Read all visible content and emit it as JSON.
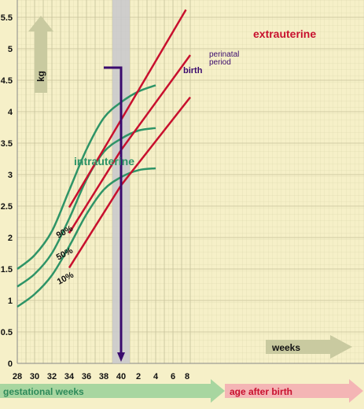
{
  "chart_data": {
    "type": "line",
    "ylabel": "kg",
    "yticks": [
      "0",
      "0.5",
      "1",
      "1.5",
      "2",
      "2.5",
      "3",
      "3.5",
      "4",
      "4.5",
      "5",
      "5.5"
    ],
    "ylim": [
      0,
      5.75
    ],
    "xticks_gestational": [
      "28",
      "30",
      "32",
      "34",
      "36",
      "38",
      "40"
    ],
    "xticks_after_birth": [
      "2",
      "4",
      "6",
      "8"
    ],
    "gestational_axis_label": "gestational weeks",
    "after_birth_axis_label": "age after birth",
    "weeks_label": "weeks",
    "intrauterine_label": "intrauterine",
    "extrauterine_label": "extrauterine",
    "birth_label": "birth",
    "perinatal_label_line1": "perinatal",
    "perinatal_label_line2": "period",
    "perinatal_band": [
      39,
      41
    ],
    "birth_week": 40,
    "grid": true,
    "colors": {
      "intrauterine": "#2e9467",
      "extrauterine": "#c8102e",
      "birth": "#3a0a6e",
      "band": "#c8c8cc",
      "arrow": "#c9caa0",
      "after_arrow": "#f4b5b5",
      "gest_arrow": "#a8d6a0"
    },
    "intrauterine_series": [
      {
        "name": "90%",
        "points": [
          [
            28,
            1.5
          ],
          [
            30,
            1.72
          ],
          [
            32,
            2.1
          ],
          [
            34,
            2.75
          ],
          [
            36,
            3.4
          ],
          [
            38,
            3.9
          ],
          [
            40,
            4.15
          ],
          [
            42,
            4.32
          ],
          [
            44,
            4.42
          ]
        ]
      },
      {
        "name": "50%",
        "points": [
          [
            28,
            1.22
          ],
          [
            30,
            1.42
          ],
          [
            32,
            1.75
          ],
          [
            34,
            2.3
          ],
          [
            36,
            2.92
          ],
          [
            38,
            3.36
          ],
          [
            40,
            3.57
          ],
          [
            42,
            3.7
          ],
          [
            44,
            3.74
          ]
        ]
      },
      {
        "name": "10%",
        "points": [
          [
            28,
            0.9
          ],
          [
            30,
            1.1
          ],
          [
            32,
            1.4
          ],
          [
            34,
            1.86
          ],
          [
            36,
            2.37
          ],
          [
            38,
            2.76
          ],
          [
            40,
            2.96
          ],
          [
            42,
            3.07
          ],
          [
            44,
            3.1
          ]
        ]
      }
    ],
    "extrauterine_series": [
      {
        "points": [
          [
            34,
            2.48
          ],
          [
            40,
            3.87
          ],
          [
            47.5,
            5.62
          ]
        ]
      },
      {
        "points": [
          [
            34,
            2.07
          ],
          [
            40,
            3.39
          ],
          [
            48,
            4.9
          ]
        ]
      },
      {
        "points": [
          [
            34,
            1.52
          ],
          [
            40,
            2.83
          ],
          [
            48,
            4.23
          ]
        ]
      }
    ]
  }
}
